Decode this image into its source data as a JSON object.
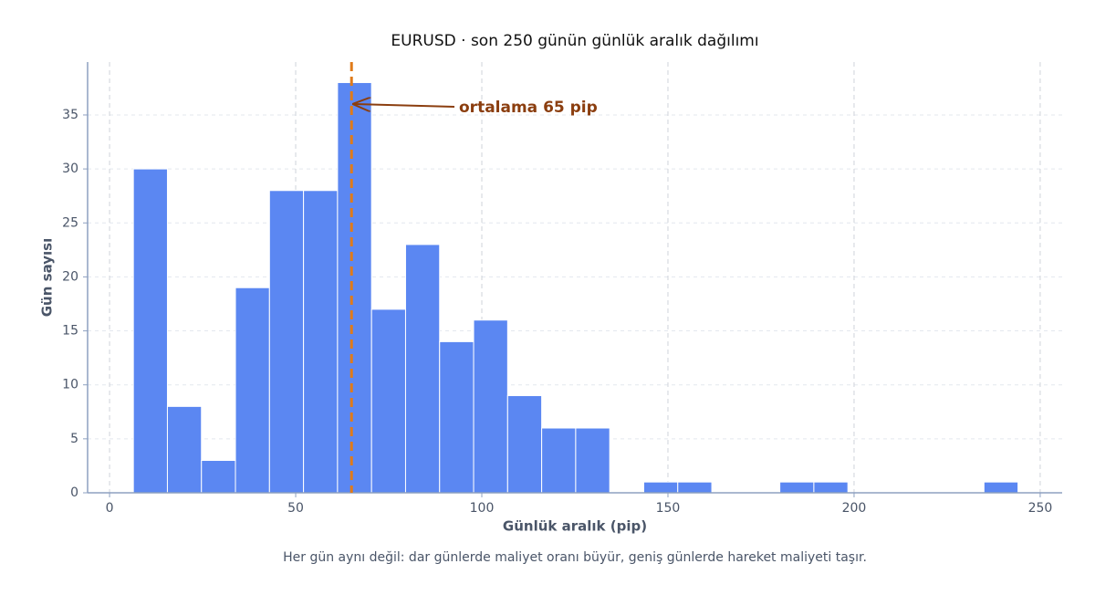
{
  "chart_data": {
    "type": "histogram",
    "title": "EURUSD · son 250 günün günlük aralık dağılımı",
    "x_label": "Günlük aralık (pip)",
    "y_label": "Gün sayısı",
    "caption": "Her gün aynı değil: dar günlerde maliyet oranı büyür, geniş günlerde hareket maliyeti taşır.",
    "bins": [
      6.4,
      15.54,
      24.68,
      33.82,
      42.96,
      52.1,
      61.24,
      70.38,
      79.52,
      88.66,
      97.8,
      106.94,
      116.08,
      125.22,
      134.36,
      143.5,
      152.64,
      161.78,
      170.92,
      180.06,
      189.2,
      198.34,
      207.48,
      216.62,
      225.76,
      234.9,
      244.04
    ],
    "values": [
      30,
      8,
      3,
      19,
      28,
      28,
      38,
      17,
      23,
      14,
      16,
      9,
      6,
      6,
      0,
      1,
      1,
      0,
      0,
      1,
      1,
      0,
      0,
      0,
      0,
      1
    ],
    "color": "#5b87f2",
    "mean_line": {
      "value": 65,
      "color": "#e07b1a"
    },
    "annotation": "ortalama 65 pip",
    "annotation_color": "#8b3e0f",
    "xlim": [
      -5.9,
      255.9
    ],
    "xticks": [
      0,
      50,
      100,
      150,
      200,
      250
    ],
    "ylim": [
      0,
      39.9
    ],
    "yticks": [
      0,
      5,
      10,
      15,
      20,
      25,
      30,
      35
    ],
    "grid": true
  }
}
